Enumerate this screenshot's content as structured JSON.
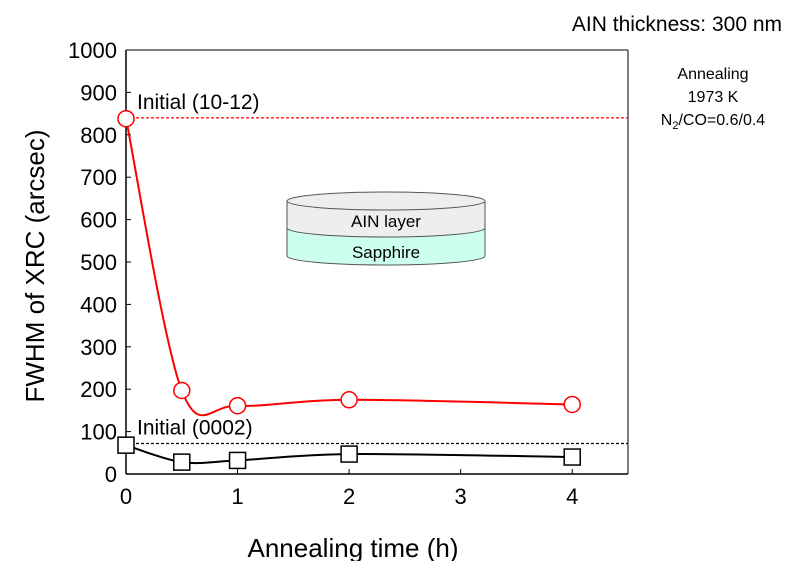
{
  "header": {
    "note": "AIN thickness: 300 nm"
  },
  "conditions": {
    "line1": "Annealing",
    "line2": "1973 K",
    "gas_prefix": "N",
    "gas_sub": "2",
    "gas_suffix": "/CO=0.6/0.4"
  },
  "schematic": {
    "top_layer": "AIN layer",
    "bottom_layer": "Sapphire"
  },
  "colors": {
    "red_series": "#ff0000",
    "black_series": "#000000",
    "sapphire": "#ccffee",
    "aln": "#eeeeee"
  },
  "chart_data": {
    "type": "line",
    "xlabel": "Annealing time (h)",
    "ylabel": "FWHM of XRC (arcsec)",
    "xlim": [
      0,
      4.5
    ],
    "ylim": [
      0,
      1000
    ],
    "xticks": [
      "0",
      "1",
      "2",
      "3",
      "4"
    ],
    "yticks": [
      "0",
      "100",
      "200",
      "300",
      "400",
      "500",
      "600",
      "700",
      "800",
      "900",
      "1000"
    ],
    "series": [
      {
        "name": "",
        "marker": "circle",
        "color": "#ff0000",
        "x": [
          0,
          0.5,
          1,
          2,
          4
        ],
        "y": [
          838,
          197,
          161,
          175,
          164
        ]
      },
      {
        "name": "",
        "marker": "square",
        "color": "#000000",
        "x": [
          0,
          0.5,
          1,
          2,
          4
        ],
        "y": [
          68,
          28,
          32,
          47,
          40
        ]
      }
    ],
    "reference_lines": [
      {
        "label": "Initial (10-12)",
        "y": 840,
        "color": "#ff0000"
      },
      {
        "label": "Initial (0002)",
        "y": 72,
        "color": "#000000"
      }
    ]
  }
}
